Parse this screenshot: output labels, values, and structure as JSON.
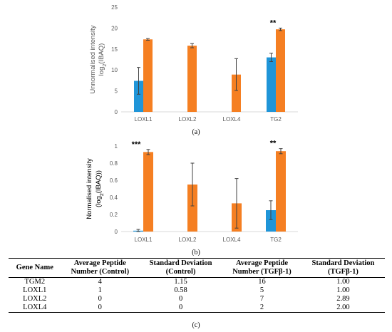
{
  "colors": {
    "control": "#1f95d8",
    "tgfb": "#f57f22",
    "error": "#404040",
    "axis": "#d9d9d9"
  },
  "chart_data": [
    {
      "type": "bar",
      "panel": "(a)",
      "categories": [
        "LOXL1",
        "LOXL2",
        "LOXL4",
        "TG2"
      ],
      "ylabel_lines": [
        "Unnormalised intensity",
        "log2(IBAQ)"
      ],
      "ylim": [
        0,
        25
      ],
      "yticks": [
        0,
        5,
        10,
        15,
        20,
        25
      ],
      "series": [
        {
          "values": [
            7.4,
            null,
            null,
            13.0
          ],
          "errors": [
            3.2,
            null,
            null,
            1.0
          ]
        },
        {
          "values": [
            17.3,
            15.8,
            8.9,
            19.7
          ],
          "errors": [
            0.2,
            0.5,
            3.8,
            0.3
          ]
        }
      ],
      "annotations": [
        {
          "category": "TG2",
          "text": "**"
        }
      ]
    },
    {
      "type": "bar",
      "panel": "(b)",
      "categories": [
        "LOXL1",
        "LOXL2",
        "LOXL4",
        "TG2"
      ],
      "ylabel_lines": [
        "Normalised intensity",
        "(log2(IBAQ))"
      ],
      "ylim": [
        0,
        1
      ],
      "yticks": [
        0,
        0.2,
        0.4,
        0.6,
        0.8,
        1
      ],
      "series": [
        {
          "values": [
            0.01,
            null,
            null,
            0.25
          ],
          "errors": [
            0.015,
            null,
            null,
            0.11
          ]
        },
        {
          "values": [
            0.93,
            0.55,
            0.33,
            0.94
          ],
          "errors": [
            0.03,
            0.25,
            0.29,
            0.03
          ]
        }
      ],
      "annotations": [
        {
          "category": "LOXL1",
          "text": "***"
        },
        {
          "category": "TG2",
          "text": "**"
        }
      ]
    },
    {
      "type": "table",
      "panel": "(c)",
      "headers": [
        [
          "Gene Name"
        ],
        [
          "Average Peptide",
          "Number (Control)"
        ],
        [
          "Standard Deviation",
          "(Control)"
        ],
        [
          "Average Peptide",
          "Number (TGFβ-1)"
        ],
        [
          "Standard Deviation",
          "(TGFβ-1)"
        ]
      ],
      "rows": [
        [
          "TGM2",
          "4",
          "1.15",
          "16",
          "1.00"
        ],
        [
          "LOXL1",
          "1",
          "0.58",
          "5",
          "1.00"
        ],
        [
          "LOXL2",
          "0",
          "0",
          "7",
          "2.89"
        ],
        [
          "LOXL4",
          "0",
          "0",
          "2",
          "2.00"
        ]
      ]
    }
  ]
}
